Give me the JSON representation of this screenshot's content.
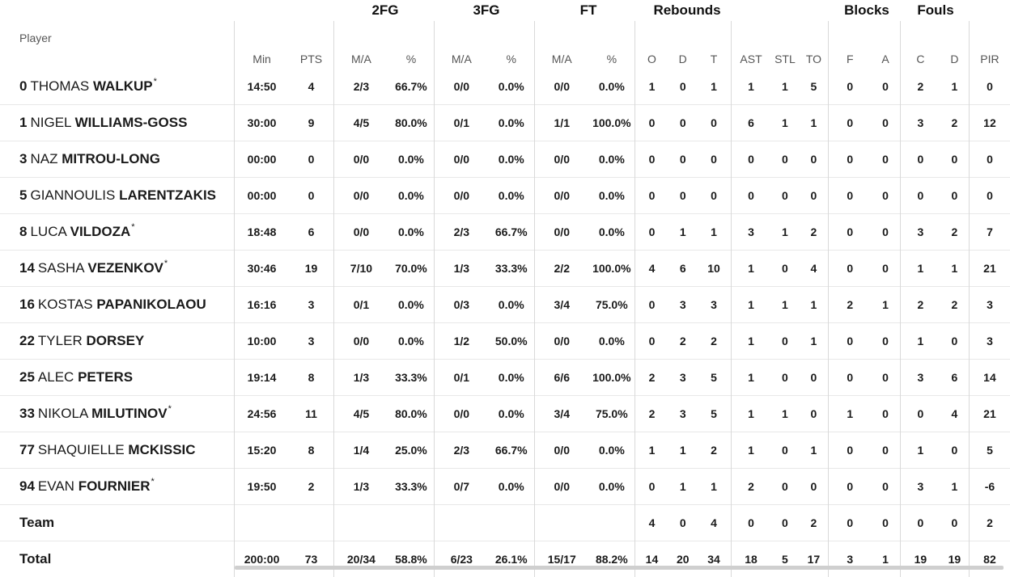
{
  "group_headers": {
    "fg2": "2FG",
    "fg3": "3FG",
    "ft": "FT",
    "rebounds": "Rebounds",
    "blocks": "Blocks",
    "fouls": "Fouls"
  },
  "columns": {
    "player": "Player",
    "min": "Min",
    "pts": "PTS",
    "fg2_ma": "M/A",
    "fg2_pct": "%",
    "fg3_ma": "M/A",
    "fg3_pct": "%",
    "ft_ma": "M/A",
    "ft_pct": "%",
    "reb_o": "O",
    "reb_d": "D",
    "reb_t": "T",
    "ast": "AST",
    "stl": "STL",
    "to": "TO",
    "blk_f": "F",
    "blk_a": "A",
    "foul_c": "C",
    "foul_d": "D",
    "pir": "PIR"
  },
  "players": [
    {
      "num": "0",
      "first": "THOMAS",
      "last": "WALKUP",
      "star": "*",
      "min": "14:50",
      "pts": "4",
      "fg2_ma": "2/3",
      "fg2_pct": "66.7%",
      "fg3_ma": "0/0",
      "fg3_pct": "0.0%",
      "ft_ma": "0/0",
      "ft_pct": "0.0%",
      "o": "1",
      "d": "0",
      "t": "1",
      "ast": "1",
      "stl": "1",
      "to": "5",
      "bf": "0",
      "ba": "0",
      "fc": "2",
      "fd": "1",
      "pir": "0"
    },
    {
      "num": "1",
      "first": "NIGEL",
      "last": "WILLIAMS-GOSS",
      "star": "",
      "min": "30:00",
      "pts": "9",
      "fg2_ma": "4/5",
      "fg2_pct": "80.0%",
      "fg3_ma": "0/1",
      "fg3_pct": "0.0%",
      "ft_ma": "1/1",
      "ft_pct": "100.0%",
      "o": "0",
      "d": "0",
      "t": "0",
      "ast": "6",
      "stl": "1",
      "to": "1",
      "bf": "0",
      "ba": "0",
      "fc": "3",
      "fd": "2",
      "pir": "12"
    },
    {
      "num": "3",
      "first": "NAZ",
      "last": "MITROU-LONG",
      "star": "",
      "min": "00:00",
      "pts": "0",
      "fg2_ma": "0/0",
      "fg2_pct": "0.0%",
      "fg3_ma": "0/0",
      "fg3_pct": "0.0%",
      "ft_ma": "0/0",
      "ft_pct": "0.0%",
      "o": "0",
      "d": "0",
      "t": "0",
      "ast": "0",
      "stl": "0",
      "to": "0",
      "bf": "0",
      "ba": "0",
      "fc": "0",
      "fd": "0",
      "pir": "0"
    },
    {
      "num": "5",
      "first": "GIANNOULIS",
      "last": "LARENTZAKIS",
      "star": "",
      "min": "00:00",
      "pts": "0",
      "fg2_ma": "0/0",
      "fg2_pct": "0.0%",
      "fg3_ma": "0/0",
      "fg3_pct": "0.0%",
      "ft_ma": "0/0",
      "ft_pct": "0.0%",
      "o": "0",
      "d": "0",
      "t": "0",
      "ast": "0",
      "stl": "0",
      "to": "0",
      "bf": "0",
      "ba": "0",
      "fc": "0",
      "fd": "0",
      "pir": "0"
    },
    {
      "num": "8",
      "first": "LUCA",
      "last": "VILDOZA",
      "star": "*",
      "min": "18:48",
      "pts": "6",
      "fg2_ma": "0/0",
      "fg2_pct": "0.0%",
      "fg3_ma": "2/3",
      "fg3_pct": "66.7%",
      "ft_ma": "0/0",
      "ft_pct": "0.0%",
      "o": "0",
      "d": "1",
      "t": "1",
      "ast": "3",
      "stl": "1",
      "to": "2",
      "bf": "0",
      "ba": "0",
      "fc": "3",
      "fd": "2",
      "pir": "7"
    },
    {
      "num": "14",
      "first": "SASHA",
      "last": "VEZENKOV",
      "star": "*",
      "min": "30:46",
      "pts": "19",
      "fg2_ma": "7/10",
      "fg2_pct": "70.0%",
      "fg3_ma": "1/3",
      "fg3_pct": "33.3%",
      "ft_ma": "2/2",
      "ft_pct": "100.0%",
      "o": "4",
      "d": "6",
      "t": "10",
      "ast": "1",
      "stl": "0",
      "to": "4",
      "bf": "0",
      "ba": "0",
      "fc": "1",
      "fd": "1",
      "pir": "21"
    },
    {
      "num": "16",
      "first": "KOSTAS",
      "last": "PAPANIKOLAOU",
      "star": "",
      "min": "16:16",
      "pts": "3",
      "fg2_ma": "0/1",
      "fg2_pct": "0.0%",
      "fg3_ma": "0/3",
      "fg3_pct": "0.0%",
      "ft_ma": "3/4",
      "ft_pct": "75.0%",
      "o": "0",
      "d": "3",
      "t": "3",
      "ast": "1",
      "stl": "1",
      "to": "1",
      "bf": "2",
      "ba": "1",
      "fc": "2",
      "fd": "2",
      "pir": "3"
    },
    {
      "num": "22",
      "first": "TYLER",
      "last": "DORSEY",
      "star": "",
      "min": "10:00",
      "pts": "3",
      "fg2_ma": "0/0",
      "fg2_pct": "0.0%",
      "fg3_ma": "1/2",
      "fg3_pct": "50.0%",
      "ft_ma": "0/0",
      "ft_pct": "0.0%",
      "o": "0",
      "d": "2",
      "t": "2",
      "ast": "1",
      "stl": "0",
      "to": "1",
      "bf": "0",
      "ba": "0",
      "fc": "1",
      "fd": "0",
      "pir": "3"
    },
    {
      "num": "25",
      "first": "ALEC",
      "last": "PETERS",
      "star": "",
      "min": "19:14",
      "pts": "8",
      "fg2_ma": "1/3",
      "fg2_pct": "33.3%",
      "fg3_ma": "0/1",
      "fg3_pct": "0.0%",
      "ft_ma": "6/6",
      "ft_pct": "100.0%",
      "o": "2",
      "d": "3",
      "t": "5",
      "ast": "1",
      "stl": "0",
      "to": "0",
      "bf": "0",
      "ba": "0",
      "fc": "3",
      "fd": "6",
      "pir": "14"
    },
    {
      "num": "33",
      "first": "NIKOLA",
      "last": "MILUTINOV",
      "star": "*",
      "min": "24:56",
      "pts": "11",
      "fg2_ma": "4/5",
      "fg2_pct": "80.0%",
      "fg3_ma": "0/0",
      "fg3_pct": "0.0%",
      "ft_ma": "3/4",
      "ft_pct": "75.0%",
      "o": "2",
      "d": "3",
      "t": "5",
      "ast": "1",
      "stl": "1",
      "to": "0",
      "bf": "1",
      "ba": "0",
      "fc": "0",
      "fd": "4",
      "pir": "21"
    },
    {
      "num": "77",
      "first": "SHAQUIELLE",
      "last": "MCKISSIC",
      "star": "",
      "min": "15:20",
      "pts": "8",
      "fg2_ma": "1/4",
      "fg2_pct": "25.0%",
      "fg3_ma": "2/3",
      "fg3_pct": "66.7%",
      "ft_ma": "0/0",
      "ft_pct": "0.0%",
      "o": "1",
      "d": "1",
      "t": "2",
      "ast": "1",
      "stl": "0",
      "to": "1",
      "bf": "0",
      "ba": "0",
      "fc": "1",
      "fd": "0",
      "pir": "5"
    },
    {
      "num": "94",
      "first": "EVAN",
      "last": "FOURNIER",
      "star": "*",
      "min": "19:50",
      "pts": "2",
      "fg2_ma": "1/3",
      "fg2_pct": "33.3%",
      "fg3_ma": "0/7",
      "fg3_pct": "0.0%",
      "ft_ma": "0/0",
      "ft_pct": "0.0%",
      "o": "0",
      "d": "1",
      "t": "1",
      "ast": "2",
      "stl": "0",
      "to": "0",
      "bf": "0",
      "ba": "0",
      "fc": "3",
      "fd": "1",
      "pir": "-6"
    }
  ],
  "team": {
    "label": "Team",
    "min": "",
    "pts": "",
    "fg2_ma": "",
    "fg2_pct": "",
    "fg3_ma": "",
    "fg3_pct": "",
    "ft_ma": "",
    "ft_pct": "",
    "o": "4",
    "d": "0",
    "t": "4",
    "ast": "0",
    "stl": "0",
    "to": "2",
    "bf": "0",
    "ba": "0",
    "fc": "0",
    "fd": "0",
    "pir": "2"
  },
  "total": {
    "label": "Total",
    "min": "200:00",
    "pts": "73",
    "fg2_ma": "20/34",
    "fg2_pct": "58.8%",
    "fg3_ma": "6/23",
    "fg3_pct": "26.1%",
    "ft_ma": "15/17",
    "ft_pct": "88.2%",
    "o": "14",
    "d": "20",
    "t": "34",
    "ast": "18",
    "stl": "5",
    "to": "17",
    "bf": "3",
    "ba": "1",
    "fc": "19",
    "fd": "19",
    "pir": "82"
  }
}
